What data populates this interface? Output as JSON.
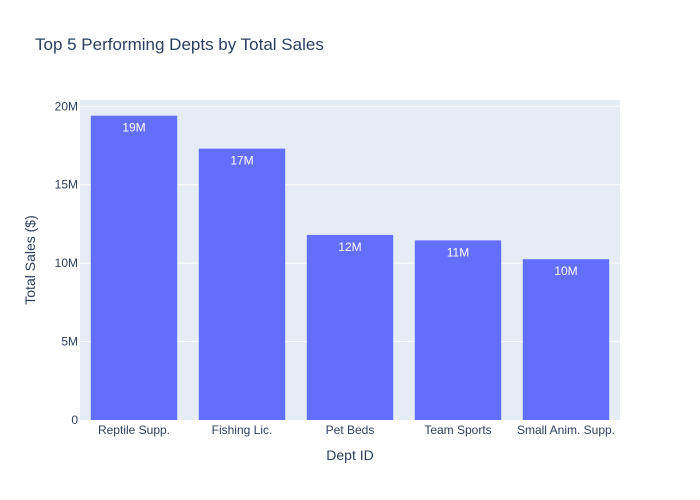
{
  "chart_data": {
    "type": "bar",
    "title": "Top 5 Performing Depts by Total Sales",
    "xlabel": "Dept ID",
    "ylabel": "Total Sales ($)",
    "categories": [
      "Reptile Supp.",
      "Fishing Lic.",
      "Pet Beds",
      "Team Sports",
      "Small Anim. Supp."
    ],
    "values": [
      19400000,
      17300000,
      11800000,
      11450000,
      10250000
    ],
    "data_labels": [
      "19M",
      "17M",
      "12M",
      "11M",
      "10M"
    ],
    "ylim": [
      0,
      20400000
    ],
    "yticks": [
      0,
      5000000,
      10000000,
      15000000,
      20000000
    ],
    "ytick_labels": [
      "0",
      "5M",
      "10M",
      "15M",
      "20M"
    ],
    "grid": true,
    "colors": {
      "bar": "#636efa",
      "plot_bg": "#e5ecf6",
      "grid": "#ffffff",
      "text": "#2a3f5f"
    }
  }
}
